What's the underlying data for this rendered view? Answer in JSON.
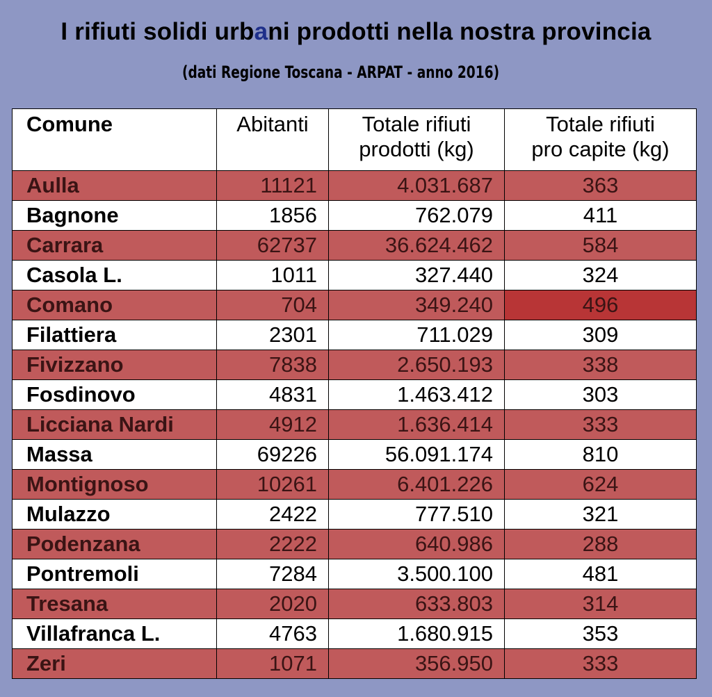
{
  "title_pre": "I rifiuti solidi urb",
  "title_accent": "a",
  "title_post": "ni prodotti nella nostra provincia",
  "subtitle": "(dati Regione Toscana - ARPAT - anno 2016)",
  "colors": {
    "background": "#8e97c4",
    "row_highlight": "#c05a5b",
    "cell_dark": "#b83536",
    "row_plain": "#ffffff"
  },
  "table": {
    "headers": [
      "Comune",
      "Abitanti",
      "Totale rifiuti prodotti (kg)",
      "Totale rifiuti pro capite (kg)"
    ],
    "header_lines": {
      "comune": "Comune",
      "abitanti": "Abitanti",
      "totale_1": "Totale rifiuti",
      "totale_2": "prodotti (kg)",
      "procapite_1": "Totale rifiuti",
      "procapite_2": "pro capite (kg)"
    },
    "rows": [
      [
        "Aulla",
        "11121",
        "4.031.687",
        "363"
      ],
      [
        "Bagnone",
        "1856",
        "762.079",
        "411"
      ],
      [
        "Carrara",
        "62737",
        "36.624.462",
        "584"
      ],
      [
        "Casola L.",
        "1011",
        "327.440",
        "324"
      ],
      [
        "Comano",
        "704",
        "349.240",
        "496"
      ],
      [
        "Filattiera",
        "2301",
        "711.029",
        "309"
      ],
      [
        "Fivizzano",
        "7838",
        "2.650.193",
        "338"
      ],
      [
        "Fosdinovo",
        "4831",
        "1.463.412",
        "303"
      ],
      [
        "Licciana Nardi",
        "4912",
        "1.636.414",
        "333"
      ],
      [
        "Massa",
        "69226",
        "56.091.174",
        "810"
      ],
      [
        "Montignoso",
        "10261",
        "6.401.226",
        "624"
      ],
      [
        "Mulazzo",
        "2422",
        "777.510",
        "321"
      ],
      [
        "Podenzana",
        "2222",
        "640.986",
        "288"
      ],
      [
        "Pontremoli",
        "7284",
        "3.500.100",
        "481"
      ],
      [
        "Tresana",
        "2020",
        "633.803",
        "314"
      ],
      [
        "Villafranca L.",
        "4763",
        "1.680.915",
        "353"
      ],
      [
        "Zeri",
        "1071",
        "356.950",
        "333"
      ]
    ]
  }
}
